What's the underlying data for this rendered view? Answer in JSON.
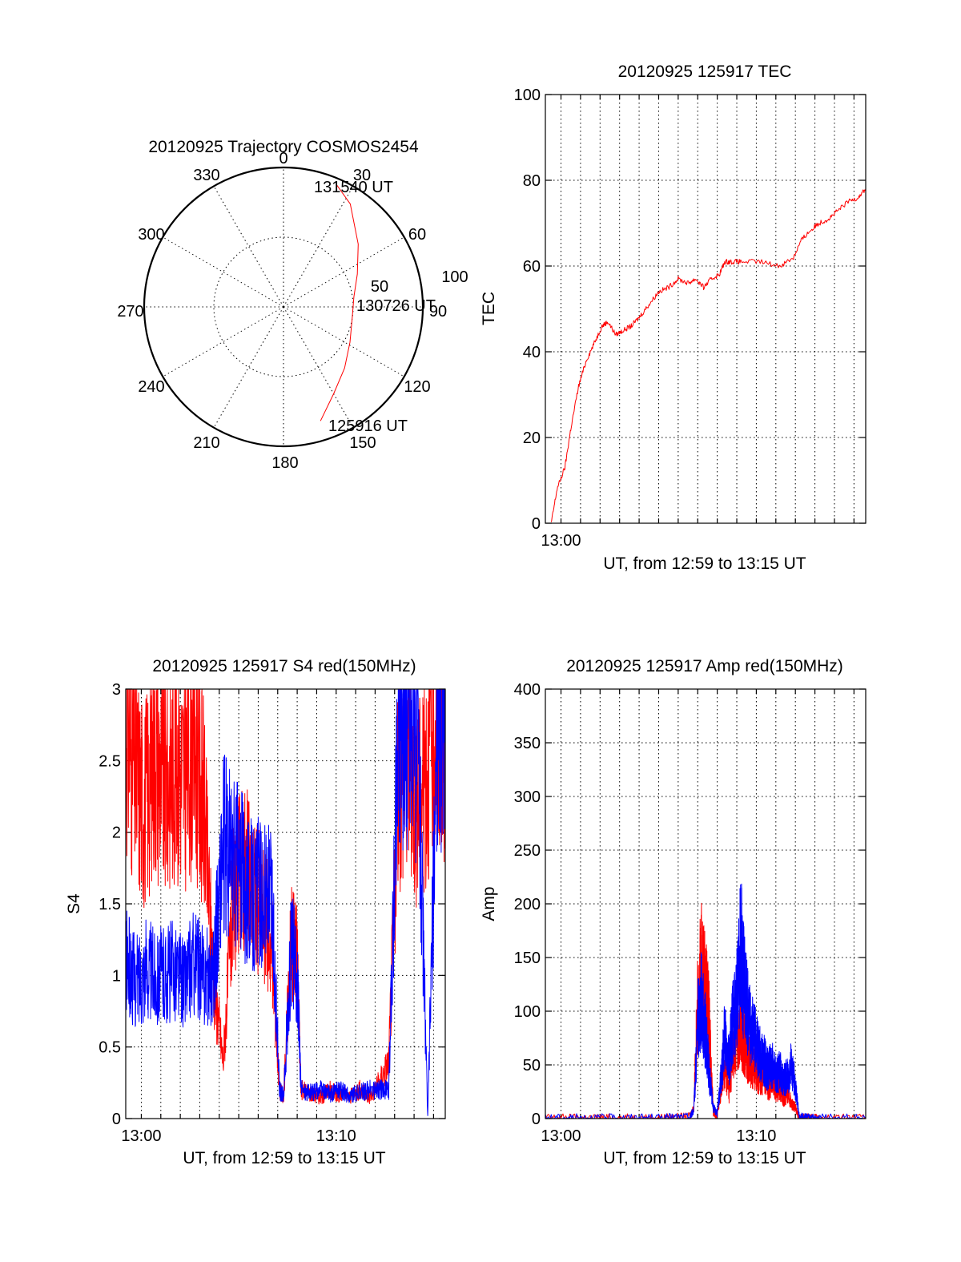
{
  "colors": {
    "red": "#ff0000",
    "blue": "#0000ff",
    "axis": "#000000",
    "background": "#ffffff"
  },
  "chart_data": [
    {
      "id": "trajectory",
      "type": "polar",
      "title": "20120925 Trajectory COSMOS2454",
      "azimuth_labels": [
        "0",
        "30",
        "60",
        "90",
        "120",
        "150",
        "180",
        "210",
        "240",
        "270",
        "300",
        "330"
      ],
      "radial_labels": [
        "50",
        "100"
      ],
      "radial_range": [
        0,
        100
      ],
      "grid": true,
      "track": {
        "color": "red",
        "start_label": "125916 UT",
        "mid_label": "130726 UT",
        "end_label": "131540 UT",
        "points": [
          {
            "az": 162,
            "r": 86
          },
          {
            "az": 150,
            "r": 72
          },
          {
            "az": 135,
            "r": 62
          },
          {
            "az": 118,
            "r": 54
          },
          {
            "az": 100,
            "r": 50
          },
          {
            "az": 82,
            "r": 51
          },
          {
            "az": 66,
            "r": 58
          },
          {
            "az": 50,
            "r": 70
          },
          {
            "az": 33,
            "r": 88
          },
          {
            "az": 23,
            "r": 96
          }
        ]
      }
    },
    {
      "id": "tec",
      "type": "line",
      "title": "20120925 125917 TEC",
      "xlabel": "UT, from 12:59 to 13:15 UT",
      "ylabel": "TEC",
      "x_unit": "minutes after 12:59 UT",
      "xlim": [
        0,
        16.4
      ],
      "ylim": [
        0,
        100
      ],
      "x_tick_labels": [
        {
          "x": 0.8,
          "label": "13:00"
        }
      ],
      "y_tick_labels": [
        "0",
        "20",
        "40",
        "60",
        "80",
        "100"
      ],
      "grid": true,
      "series": [
        {
          "color": "red",
          "x": [
            0.3,
            0.6,
            1.0,
            1.3,
            1.7,
            2.1,
            2.5,
            2.9,
            3.2,
            3.6,
            4.0,
            4.4,
            4.8,
            5.3,
            5.8,
            6.3,
            6.8,
            7.3,
            7.7,
            8.1,
            8.5,
            8.9,
            9.2,
            9.5,
            10.0,
            11.0,
            12.0,
            12.7,
            13.1,
            13.5,
            14.0,
            14.5,
            15.0,
            15.5,
            16.0,
            16.4
          ],
          "y": [
            0,
            8,
            13,
            22,
            32,
            38,
            42,
            46,
            47,
            44,
            45,
            46,
            48,
            51,
            54,
            55,
            57,
            56,
            57,
            55,
            57,
            58,
            61,
            61,
            61,
            61,
            60,
            62,
            66,
            68,
            70,
            71,
            73,
            75,
            76,
            78
          ]
        }
      ]
    },
    {
      "id": "s4",
      "type": "line",
      "title": "20120925 125917 S4 red(150MHz)",
      "xlabel": "UT, from 12:59 to 13:15 UT",
      "ylabel": "S4",
      "x_unit": "minutes after 12:59 UT",
      "xlim": [
        0,
        16.4
      ],
      "ylim": [
        0,
        3
      ],
      "x_tick_labels": [
        {
          "x": 0.8,
          "label": "13:00"
        },
        {
          "x": 10.8,
          "label": "13:10"
        }
      ],
      "y_tick_labels": [
        "0",
        "0.5",
        "1",
        "1.5",
        "2",
        "2.5",
        "3"
      ],
      "grid": true,
      "series": [
        {
          "color": "red",
          "x": [
            0.0,
            0.5,
            1.0,
            1.5,
            2.0,
            2.5,
            3.0,
            3.5,
            4.0,
            4.5,
            5.0,
            5.5,
            6.0,
            6.5,
            7.0,
            7.5,
            7.9,
            8.1,
            8.5,
            8.8,
            9.0,
            9.5,
            10.0,
            10.5,
            11.0,
            11.5,
            12.0,
            12.5,
            13.0,
            13.5,
            14.0,
            14.5,
            15.0,
            15.5,
            16.0,
            16.4
          ],
          "y": [
            2.8,
            2.4,
            2.2,
            2.6,
            2.3,
            2.5,
            2.4,
            2.6,
            2.2,
            1.0,
            0.4,
            1.5,
            1.8,
            1.6,
            1.5,
            1.2,
            0.2,
            0.15,
            1.3,
            1.1,
            0.2,
            0.18,
            0.15,
            0.2,
            0.17,
            0.15,
            0.2,
            0.15,
            0.25,
            0.4,
            2.4,
            2.6,
            2.2,
            2.5,
            2.8,
            2.7
          ]
        },
        {
          "color": "blue",
          "x": [
            0.0,
            0.5,
            1.0,
            1.5,
            2.0,
            2.5,
            3.0,
            3.5,
            4.0,
            4.5,
            5.0,
            5.5,
            6.0,
            6.5,
            7.0,
            7.5,
            7.9,
            8.1,
            8.5,
            8.8,
            9.0,
            9.5,
            10.0,
            10.5,
            11.0,
            11.5,
            12.0,
            12.5,
            13.0,
            13.5,
            14.0,
            14.5,
            15.0,
            15.5,
            16.0,
            16.4
          ],
          "y": [
            1.1,
            0.95,
            1.05,
            1.0,
            1.0,
            1.05,
            0.95,
            1.1,
            1.0,
            1.0,
            1.9,
            1.8,
            1.7,
            1.55,
            1.6,
            1.5,
            0.2,
            0.15,
            1.2,
            1.0,
            0.2,
            0.18,
            0.2,
            0.17,
            0.2,
            0.16,
            0.18,
            0.2,
            0.2,
            0.2,
            2.8,
            2.9,
            2.7,
            0.0,
            2.8,
            2.9
          ]
        }
      ]
    },
    {
      "id": "amp",
      "type": "line",
      "title": "20120925 125917 Amp red(150MHz)",
      "xlabel": "UT, from 12:59 to 13:15 UT",
      "ylabel": "Amp",
      "x_unit": "minutes after 12:59 UT",
      "xlim": [
        0,
        16.4
      ],
      "ylim": [
        0,
        400
      ],
      "x_tick_labels": [
        {
          "x": 0.8,
          "label": "13:00"
        },
        {
          "x": 10.8,
          "label": "13:10"
        }
      ],
      "y_tick_labels": [
        "0",
        "50",
        "100",
        "150",
        "200",
        "250",
        "300",
        "350",
        "400"
      ],
      "grid": true,
      "series": [
        {
          "color": "red",
          "x": [
            0.0,
            2.0,
            4.0,
            6.0,
            7.4,
            7.6,
            7.8,
            8.0,
            8.2,
            8.4,
            8.6,
            8.8,
            9.0,
            9.2,
            9.4,
            9.6,
            9.8,
            10.0,
            10.2,
            10.4,
            10.6,
            10.8,
            11.0,
            11.2,
            11.4,
            11.6,
            11.8,
            12.0,
            12.2,
            12.4,
            12.6,
            12.8,
            13.0,
            13.4,
            14.0,
            16.4
          ],
          "y": [
            1,
            1,
            1,
            1,
            2,
            10,
            110,
            140,
            120,
            90,
            5,
            3,
            30,
            50,
            25,
            60,
            80,
            85,
            70,
            55,
            50,
            45,
            35,
            40,
            30,
            35,
            25,
            30,
            20,
            25,
            15,
            10,
            1,
            1,
            1,
            1
          ]
        },
        {
          "color": "blue",
          "x": [
            0.0,
            2.0,
            4.0,
            6.0,
            7.4,
            7.6,
            7.8,
            8.0,
            8.2,
            8.4,
            8.6,
            8.8,
            9.0,
            9.2,
            9.4,
            9.6,
            9.8,
            10.0,
            10.2,
            10.4,
            10.6,
            10.8,
            11.0,
            11.2,
            11.4,
            11.6,
            11.8,
            12.0,
            12.2,
            12.4,
            12.6,
            12.8,
            13.0,
            13.4,
            14.0,
            16.4
          ],
          "y": [
            1,
            1,
            1,
            1,
            2,
            8,
            90,
            110,
            80,
            40,
            10,
            5,
            40,
            80,
            55,
            90,
            110,
            160,
            120,
            95,
            80,
            70,
            60,
            55,
            45,
            50,
            40,
            45,
            35,
            40,
            50,
            30,
            2,
            1,
            1,
            1
          ]
        }
      ]
    }
  ]
}
